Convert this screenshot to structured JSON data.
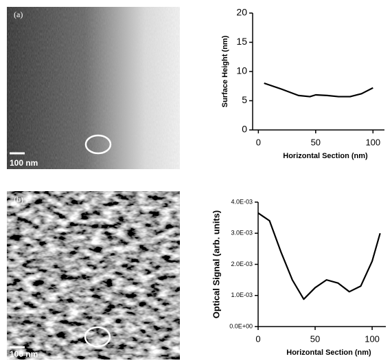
{
  "panels": [
    {
      "label": "(a)",
      "scale_bar": "100 nm"
    },
    {
      "label": "(b)",
      "scale_bar": "100 nm"
    }
  ],
  "chart_data": [
    {
      "type": "line",
      "x_label": "Horizontal Section (nm)",
      "y_label": "Surface Height (nm)",
      "x": [
        5,
        20,
        35,
        45,
        50,
        60,
        70,
        80,
        90,
        100
      ],
      "values": [
        8,
        7,
        5.9,
        5.7,
        6,
        5.9,
        5.7,
        5.7,
        6.2,
        7.2
      ],
      "color": "#000000",
      "xlim": [
        -5,
        110
      ],
      "xticks": [
        0,
        50,
        100
      ],
      "ylim": [
        0,
        20
      ],
      "yticks": [
        0,
        5,
        10,
        15,
        20
      ]
    },
    {
      "type": "line",
      "x_label": "Horizontal Section (nm)",
      "y_label": "Optical Signal (arb. units)",
      "x": [
        0,
        10,
        20,
        30,
        40,
        50,
        60,
        70,
        80,
        90,
        100,
        107
      ],
      "values": [
        0.00365,
        0.0034,
        0.0024,
        0.0015,
        0.00088,
        0.00125,
        0.0015,
        0.0014,
        0.00112,
        0.0013,
        0.0021,
        0.003
      ],
      "color": "#000000",
      "xlim": [
        0,
        112
      ],
      "xticks": [
        0,
        50,
        100
      ],
      "ylim": [
        0,
        0.004
      ],
      "yticks": [
        {
          "value": 0,
          "label": "0.0E+00"
        },
        {
          "value": 0.001,
          "label": "1.0E-03"
        },
        {
          "value": 0.002,
          "label": "2.0E-03"
        },
        {
          "value": 0.003,
          "label": "3.0E-03"
        },
        {
          "value": 0.004,
          "label": "4.0E-03"
        }
      ]
    }
  ]
}
